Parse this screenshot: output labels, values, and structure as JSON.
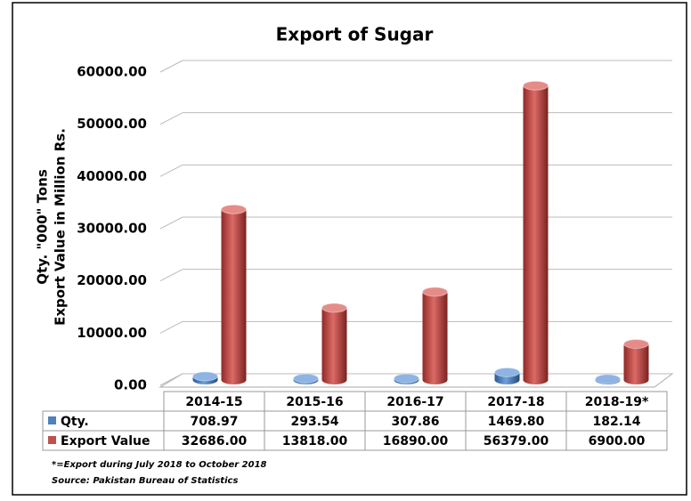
{
  "chart_data": {
    "type": "bar3d",
    "title": "Export of Sugar",
    "y_label": [
      "Qty. \"000\" Tons",
      "Export Value in Million Rs."
    ],
    "categories": [
      "2014-15",
      "2015-16",
      "2016-17",
      "2017-18",
      "2018-19*"
    ],
    "series": [
      {
        "name": "Qty.",
        "color": "#4f81bd",
        "values": [
          708.97,
          293.54,
          307.86,
          1469.8,
          182.14
        ],
        "value_labels": [
          "708.97",
          "293.54",
          "307.86",
          "1469.80",
          "182.14"
        ]
      },
      {
        "name": "Export Value",
        "color": "#c0504d",
        "values": [
          32686,
          13818,
          16890,
          56379,
          6900
        ],
        "value_labels": [
          "32686.00",
          "13818.00",
          "16890.00",
          "56379.00",
          "6900.00"
        ]
      }
    ],
    "ylim": [
      0,
      60000
    ],
    "yticks": [
      {
        "value": 0,
        "label": "0.00"
      },
      {
        "value": 10000,
        "label": "10000.00"
      },
      {
        "value": 20000,
        "label": "20000.00"
      },
      {
        "value": 30000,
        "label": "30000.00"
      },
      {
        "value": 40000,
        "label": "40000.00"
      },
      {
        "value": 50000,
        "label": "50000.00"
      },
      {
        "value": 60000,
        "label": "60000.00"
      }
    ],
    "grid": true,
    "notes": [
      "*=Export during July 2018 to October 2018",
      "Source: Pakistan Bureau of Statistics"
    ]
  }
}
